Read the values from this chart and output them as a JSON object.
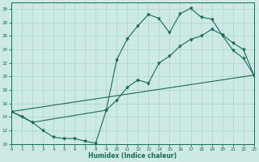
{
  "xlabel": "Humidex (Indice chaleur)",
  "bg_color": "#cce9e5",
  "line_color": "#1a6b5a",
  "grid_color": "#aad4ce",
  "xlim": [
    0,
    23
  ],
  "ylim": [
    10,
    31
  ],
  "xticks": [
    0,
    1,
    2,
    3,
    4,
    5,
    6,
    7,
    8,
    9,
    10,
    11,
    12,
    13,
    14,
    15,
    16,
    17,
    18,
    19,
    20,
    21,
    22,
    23
  ],
  "yticks": [
    10,
    12,
    14,
    16,
    18,
    20,
    22,
    24,
    26,
    28,
    30
  ],
  "line1_x": [
    0,
    1,
    2,
    3,
    4,
    5,
    6,
    7,
    8,
    9,
    10,
    11,
    12,
    13,
    14,
    15,
    16,
    17,
    18,
    19,
    20,
    21,
    22,
    23
  ],
  "line1_y": [
    14.8,
    14.1,
    13.2,
    12.0,
    11.0,
    10.8,
    10.8,
    10.4,
    10.1,
    15.0,
    22.5,
    25.6,
    27.5,
    29.2,
    28.6,
    26.5,
    29.3,
    30.1,
    28.8,
    28.5,
    26.1,
    23.9,
    22.7,
    20.2
  ],
  "line2_x": [
    0,
    2,
    9,
    10,
    11,
    12,
    13,
    14,
    15,
    16,
    17,
    18,
    19,
    20,
    21,
    22,
    23
  ],
  "line2_y": [
    14.8,
    13.2,
    15.0,
    16.5,
    18.4,
    19.5,
    19.0,
    22.0,
    23.0,
    24.5,
    25.5,
    26.0,
    27.0,
    26.2,
    25.0,
    24.0,
    20.2
  ],
  "line3_x": [
    0,
    23
  ],
  "line3_y": [
    14.8,
    20.2
  ]
}
